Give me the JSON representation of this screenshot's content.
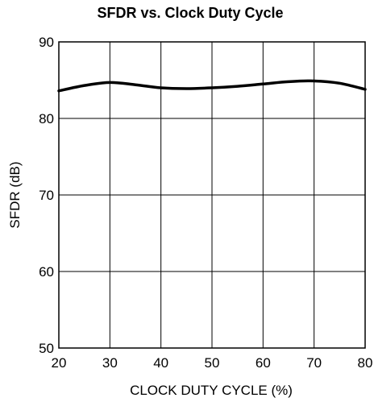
{
  "chart_data": {
    "type": "line",
    "title": "SFDR vs. Clock Duty Cycle",
    "xlabel": "CLOCK DUTY CYCLE (%)",
    "ylabel": "SFDR (dB)",
    "xlim": [
      20,
      80
    ],
    "ylim": [
      50,
      90
    ],
    "xticks": [
      "20",
      "30",
      "40",
      "50",
      "60",
      "70",
      "80"
    ],
    "yticks": [
      "50",
      "60",
      "70",
      "80",
      "90"
    ],
    "grid": true,
    "series": [
      {
        "x": [
          20,
          25,
          30,
          35,
          40,
          45,
          50,
          55,
          60,
          65,
          70,
          75,
          80
        ],
        "y": [
          83.6,
          84.3,
          84.7,
          84.4,
          84.0,
          83.9,
          84.0,
          84.2,
          84.5,
          84.8,
          84.9,
          84.6,
          83.8
        ]
      }
    ]
  }
}
